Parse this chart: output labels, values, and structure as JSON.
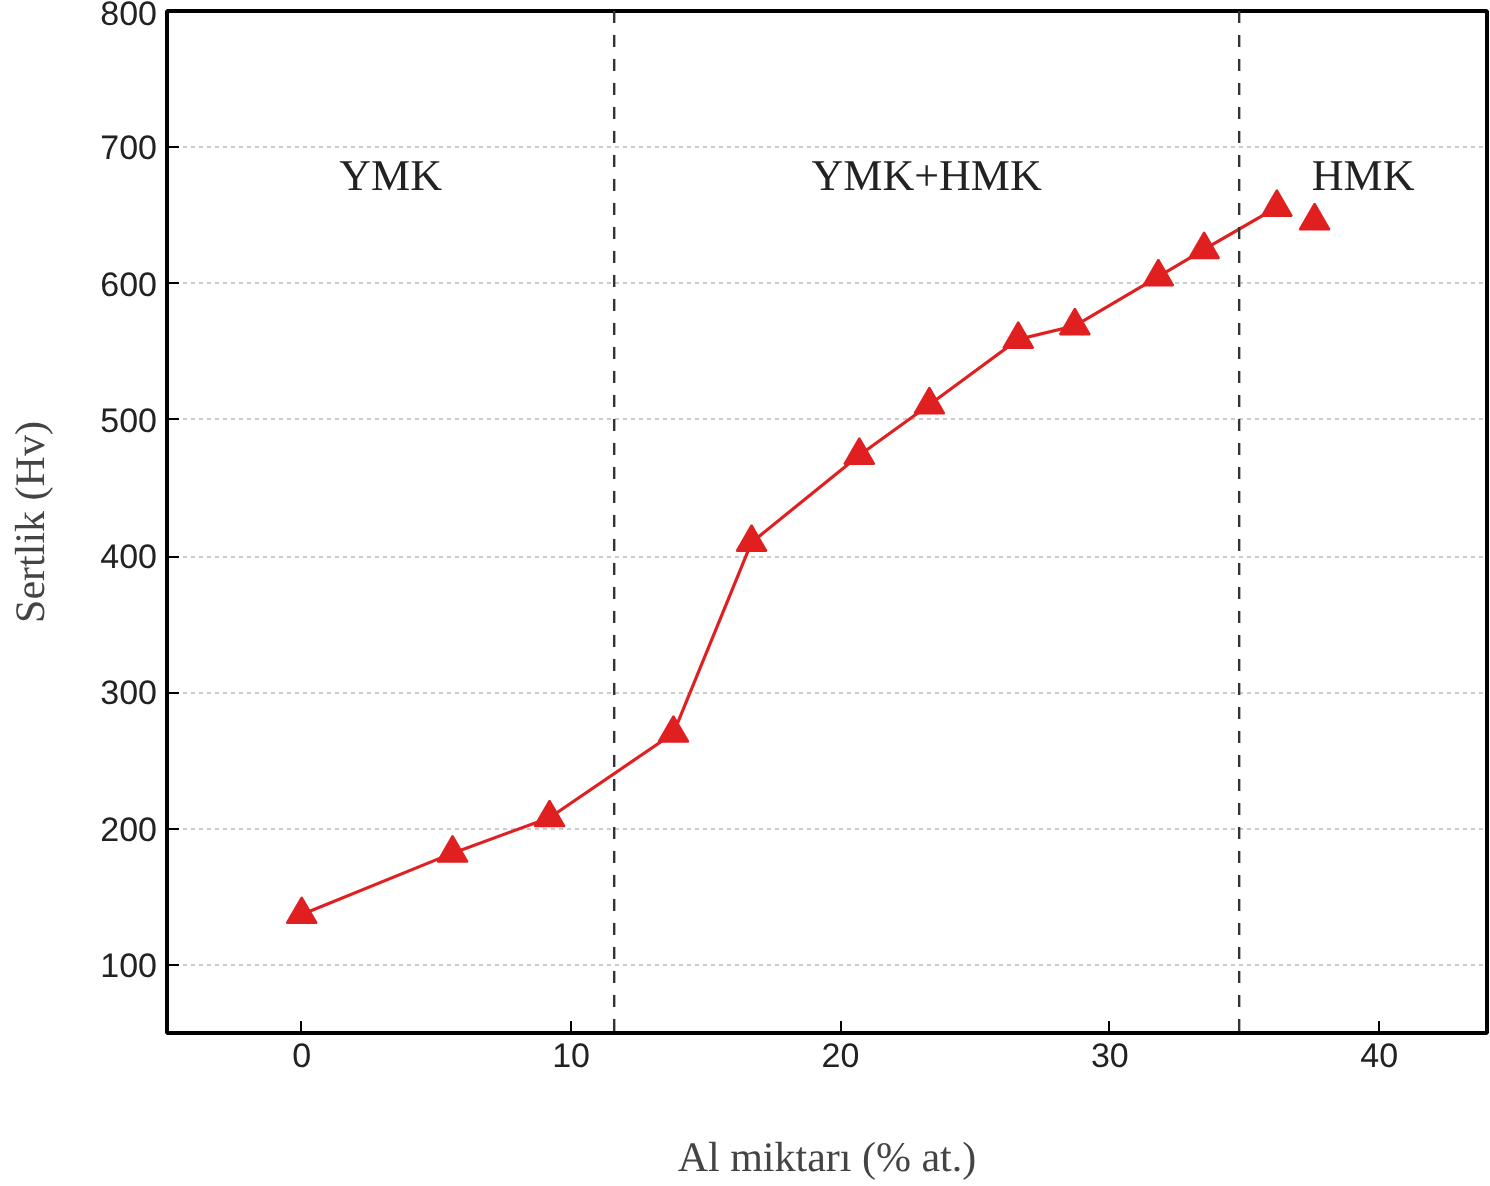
{
  "chart_data": {
    "type": "line",
    "xlabel": "Al miktarı (% at.)",
    "ylabel": "Sertlik (Hv)",
    "xlim": [
      -5,
      44
    ],
    "ylim": [
      50,
      800
    ],
    "xticks": [
      0,
      10,
      20,
      30,
      40
    ],
    "yticks": [
      100,
      200,
      300,
      400,
      500,
      600,
      700,
      800
    ],
    "grid": "y",
    "marker": "triangle",
    "line_style": "solid",
    "series": [
      {
        "color": "#e02020",
        "x": [
          0,
          5.6,
          9.2,
          13.8,
          16.7,
          20.7,
          23.3,
          26.6,
          28.7,
          31.8,
          33.5,
          36.2
        ],
        "values": [
          137,
          182,
          208,
          270,
          410,
          474,
          511,
          559,
          569,
          605,
          625,
          656
        ]
      },
      {
        "type": "scatter",
        "color": "#e02020",
        "x": [
          37.6
        ],
        "values": [
          646
        ]
      }
    ],
    "ref_lines": [
      {
        "axis": "x",
        "value": 11.6,
        "line_style": "dashed",
        "color": "#333333"
      },
      {
        "axis": "x",
        "value": 34.8,
        "line_style": "dashed",
        "color": "#333333"
      }
    ],
    "annotations": [
      "YMK",
      "YMK+HMK",
      "HMK"
    ]
  }
}
